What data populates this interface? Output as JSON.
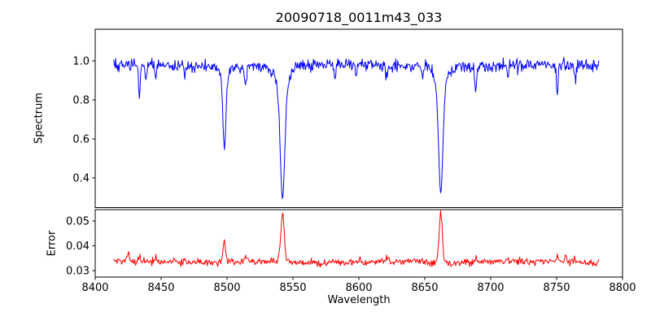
{
  "figure": {
    "title": "20090718_0011m43_033",
    "xlabel": "Wavelength",
    "background": "#ffffff",
    "spine_color": "#000000"
  },
  "x_axis": {
    "ticks": [
      8400,
      8450,
      8500,
      8550,
      8600,
      8650,
      8700,
      8750,
      8800
    ],
    "labels": [
      "8400",
      "8450",
      "8500",
      "8550",
      "8600",
      "8650",
      "8700",
      "8750",
      "8800"
    ]
  },
  "chart_data": [
    {
      "type": "line",
      "name": "spectrum",
      "ylabel": "Spectrum",
      "color": "#0000ff",
      "xlim": [
        8400,
        8800
      ],
      "ylim": [
        0.248,
        1.1625
      ],
      "yticks": [
        0.4,
        0.6,
        0.8,
        1.0
      ],
      "ytick_labels": [
        "0.4",
        "0.6",
        "0.8",
        "1.0"
      ],
      "x_start": 8414,
      "x_end": 8782,
      "x_step": 0.5,
      "baseline": 0.975,
      "noise_sigma": 0.016,
      "seed": 20090718,
      "baseline_wiggle": {
        "amplitude": 0.006,
        "period": 150
      },
      "absorption_lines": [
        {
          "center": 8433.5,
          "depth": 0.15,
          "sigma": 0.7
        },
        {
          "center": 8438.5,
          "depth": 0.08,
          "sigma": 0.6
        },
        {
          "center": 8446.0,
          "depth": 0.06,
          "sigma": 0.6
        },
        {
          "center": 8468.0,
          "depth": 0.07,
          "sigma": 0.6
        },
        {
          "center": 8498.0,
          "depth": 0.34,
          "sigma": 1.1,
          "wing_depth": 0.075,
          "wing_sigma": 2.5
        },
        {
          "center": 8514.0,
          "depth": 0.1,
          "sigma": 0.8
        },
        {
          "center": 8542.1,
          "depth": 0.52,
          "sigma": 1.6,
          "wing_depth": 0.16,
          "wing_sigma": 4.0
        },
        {
          "center": 8582.0,
          "depth": 0.07,
          "sigma": 0.7
        },
        {
          "center": 8598.0,
          "depth": 0.05,
          "sigma": 0.6
        },
        {
          "center": 8621.0,
          "depth": 0.06,
          "sigma": 0.6
        },
        {
          "center": 8648.0,
          "depth": 0.05,
          "sigma": 0.6
        },
        {
          "center": 8662.1,
          "depth": 0.5,
          "sigma": 1.5,
          "wing_depth": 0.145,
          "wing_sigma": 3.5
        },
        {
          "center": 8688.5,
          "depth": 0.13,
          "sigma": 0.7
        },
        {
          "center": 8713.0,
          "depth": 0.06,
          "sigma": 0.6
        },
        {
          "center": 8750.5,
          "depth": 0.145,
          "sigma": 0.7
        },
        {
          "center": 8764.0,
          "depth": 0.08,
          "sigma": 0.6
        }
      ]
    },
    {
      "type": "line",
      "name": "error",
      "ylabel": "Error",
      "color": "#ff0000",
      "xlim": [
        8400,
        8800
      ],
      "ylim": [
        0.0274,
        0.0546
      ],
      "yticks": [
        0.03,
        0.04,
        0.05
      ],
      "ytick_labels": [
        "0.03",
        "0.04",
        "0.05"
      ],
      "x_start": 8414,
      "x_end": 8782,
      "x_step": 0.5,
      "baseline": 0.0335,
      "noise_sigma": 0.0007,
      "seed": 433,
      "baseline_wiggle": {
        "amplitude": 0.0004,
        "period": 100
      },
      "peaks": [
        {
          "center": 8425.0,
          "height": 0.003,
          "sigma": 0.8
        },
        {
          "center": 8433.5,
          "height": 0.0026,
          "sigma": 0.7
        },
        {
          "center": 8446.0,
          "height": 0.0015,
          "sigma": 0.6
        },
        {
          "center": 8460.0,
          "height": 0.0018,
          "sigma": 0.7
        },
        {
          "center": 8468.0,
          "height": 0.0015,
          "sigma": 0.6
        },
        {
          "center": 8498.0,
          "height": 0.0075,
          "sigma": 1.1
        },
        {
          "center": 8514.0,
          "height": 0.002,
          "sigma": 0.8
        },
        {
          "center": 8542.1,
          "height": 0.0185,
          "sigma": 1.3
        },
        {
          "center": 8582.0,
          "height": 0.001,
          "sigma": 0.6
        },
        {
          "center": 8621.0,
          "height": 0.001,
          "sigma": 0.6
        },
        {
          "center": 8662.1,
          "height": 0.0198,
          "sigma": 1.2
        },
        {
          "center": 8688.5,
          "height": 0.0015,
          "sigma": 0.7
        },
        {
          "center": 8713.0,
          "height": 0.001,
          "sigma": 0.6
        },
        {
          "center": 8750.5,
          "height": 0.0028,
          "sigma": 0.7
        },
        {
          "center": 8757.0,
          "height": 0.0022,
          "sigma": 0.7
        },
        {
          "center": 8764.0,
          "height": 0.0018,
          "sigma": 0.6
        }
      ]
    }
  ]
}
